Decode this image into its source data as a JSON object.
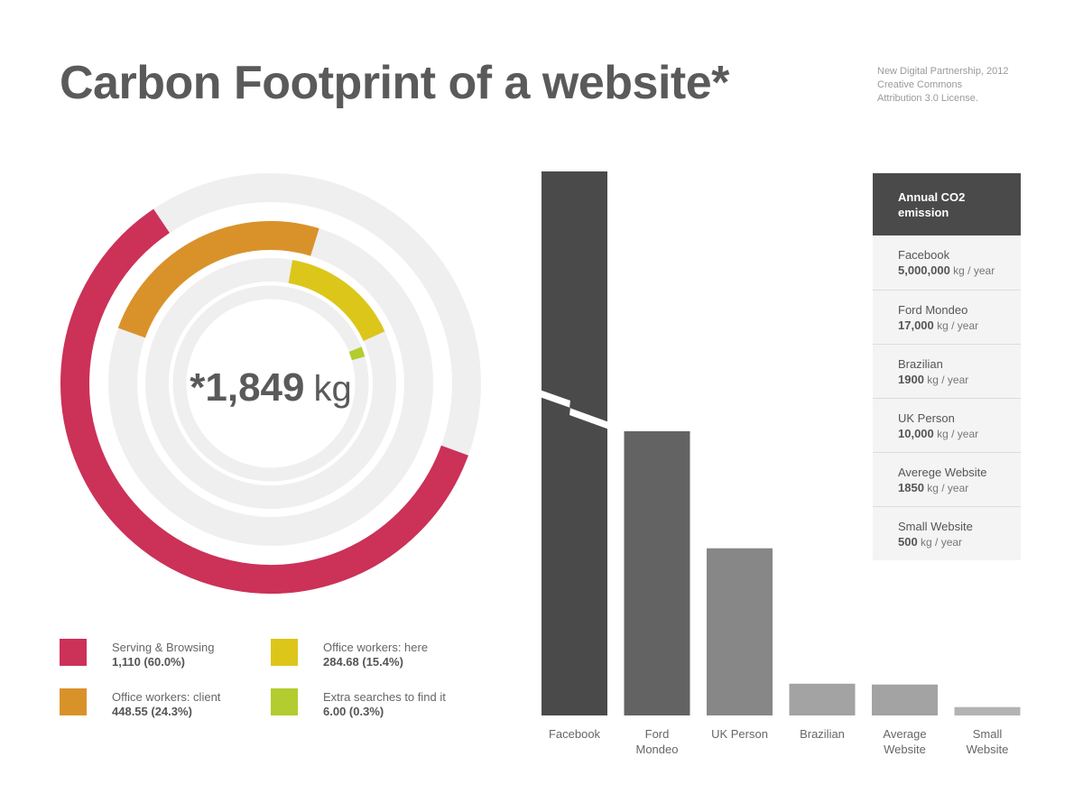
{
  "title": "Carbon Footprint of a website*",
  "credits": [
    "New Digital Partnership, 2012",
    "Creative Commons",
    "Attribution 3.0 License."
  ],
  "colors": {
    "serving": "#cc3158",
    "client": "#d9922a",
    "here": "#dcc61a",
    "searches": "#b3cc2f",
    "track": "#efefef",
    "bar_dark": "#4a4a4a",
    "bar_mid": "#636363",
    "bar_light": "#878787",
    "bar_lighter": "#a3a3a3",
    "bar_lightest": "#b3b3b3"
  },
  "chart_data": [
    {
      "type": "pie",
      "variant": "concentric-rings",
      "center_label": {
        "value": "*1,849",
        "unit": "kg"
      },
      "total": 1849,
      "series": [
        {
          "name": "Serving & Browsing",
          "value": 1110,
          "value_label": "1,110 (60.0%)",
          "percent": 60.0,
          "color_key": "serving"
        },
        {
          "name": "Office workers: client",
          "value": 448.55,
          "value_label": "448.55 (24.3%)",
          "percent": 24.3,
          "color_key": "client"
        },
        {
          "name": "Office workers: here",
          "value": 284.68,
          "value_label": "284.68 (15.4%)",
          "percent": 15.4,
          "color_key": "here"
        },
        {
          "name": "Extra searches to find it",
          "value": 6.0,
          "value_label": "6.00 (0.3%)",
          "percent": 0.3,
          "color_key": "searches"
        }
      ],
      "legend": {
        "placement": "bottom",
        "columns": 2
      }
    },
    {
      "type": "bar",
      "ylabel": "",
      "axis_break": "Facebook",
      "categories": [
        {
          "label_lines": [
            "Facebook"
          ],
          "value": 5000000,
          "color_key": "bar_dark"
        },
        {
          "label_lines": [
            "Ford",
            "Mondeo"
          ],
          "value": 17000,
          "color_key": "bar_mid"
        },
        {
          "label_lines": [
            "UK Person"
          ],
          "value": 10000,
          "color_key": "bar_light"
        },
        {
          "label_lines": [
            "Brazilian"
          ],
          "value": 1900,
          "color_key": "bar_lighter"
        },
        {
          "label_lines": [
            "Average",
            "Website"
          ],
          "value": 1850,
          "color_key": "bar_lighter"
        },
        {
          "label_lines": [
            "Small",
            "Website"
          ],
          "value": 500,
          "color_key": "bar_lightest"
        }
      ],
      "ylim": [
        0,
        20000
      ]
    }
  ],
  "info_panel": {
    "header": "Annual CO2 emission",
    "rows": [
      {
        "name": "Facebook",
        "value": "5,000,000",
        "unit": "kg / year"
      },
      {
        "name": "Ford Mondeo",
        "value": "17,000",
        "unit": "kg / year"
      },
      {
        "name": "Brazilian",
        "value": "1900",
        "unit": "kg / year"
      },
      {
        "name": "UK Person",
        "value": "10,000",
        "unit": "kg / year"
      },
      {
        "name": "Averege Website",
        "value": "1850",
        "unit": "kg / year"
      },
      {
        "name": "Small Website",
        "value": "500",
        "unit": "kg / year"
      }
    ]
  }
}
